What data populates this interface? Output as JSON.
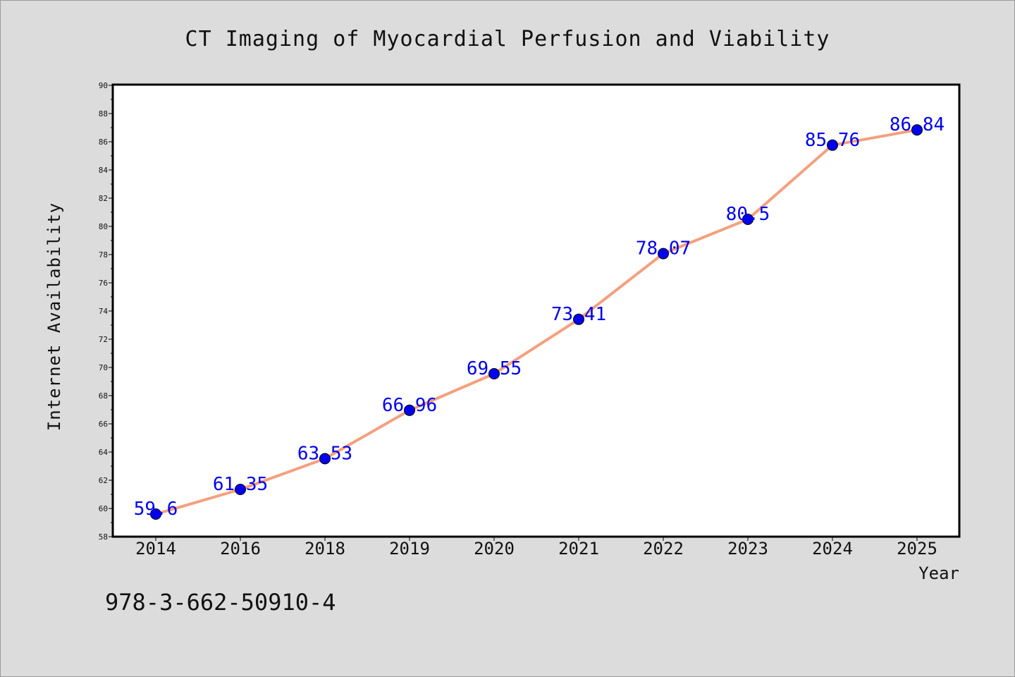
{
  "chart_data": {
    "type": "line",
    "title": "CT Imaging of Myocardial Perfusion and Viability",
    "xlabel": "Year",
    "ylabel": "Internet Availability",
    "categories": [
      "2014",
      "2016",
      "2018",
      "2019",
      "2020",
      "2021",
      "2022",
      "2023",
      "2024",
      "2025"
    ],
    "series": [
      {
        "values": [
          59.6,
          61.35,
          63.53,
          66.96,
          69.55,
          73.41,
          78.07,
          80.5,
          85.76,
          86.84
        ],
        "line_color": "#f4a07e",
        "marker_color": "#0000ee"
      }
    ],
    "data_labels": [
      "59.6",
      "61.35",
      "63.53",
      "66.96",
      "69.55",
      "73.41",
      "78.07",
      "80.5",
      "85.76",
      "86.84"
    ],
    "ylim": [
      58,
      90
    ],
    "yticks": [
      "58",
      "60",
      "62",
      "64",
      "66",
      "68",
      "70",
      "72",
      "74",
      "76",
      "78",
      "80",
      "82",
      "84",
      "86",
      "88",
      "90"
    ],
    "grid": false,
    "legend": "none"
  },
  "annotation": "978-3-662-50910-4"
}
